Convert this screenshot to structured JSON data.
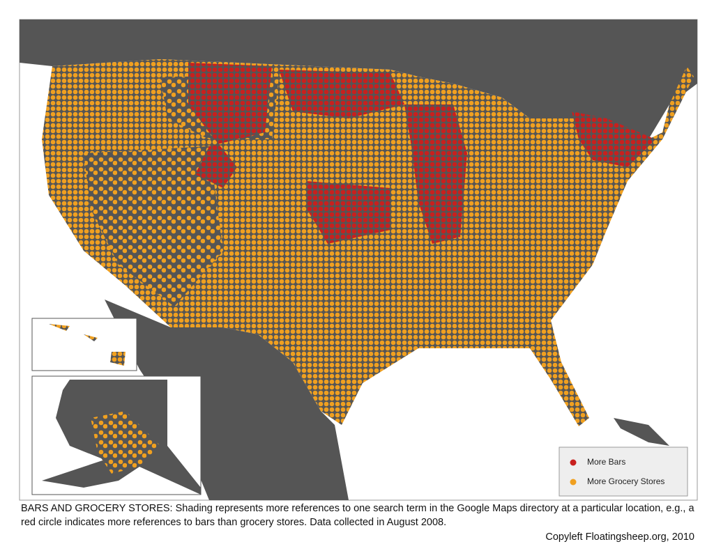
{
  "map": {
    "legend": [
      {
        "label": "More Bars",
        "color": "#c8201e"
      },
      {
        "label": "More Grocery Stores",
        "color": "#f0a020"
      }
    ]
  },
  "caption": "BARS AND GROCERY STORES: Shading represents more references to one search term in the Google Maps directory at a particular location, e.g., a red circle indicates more references to bars than grocery stores. Data collected in August 2008.",
  "credit": "Copyleft Floatingsheep.org, 2010"
}
